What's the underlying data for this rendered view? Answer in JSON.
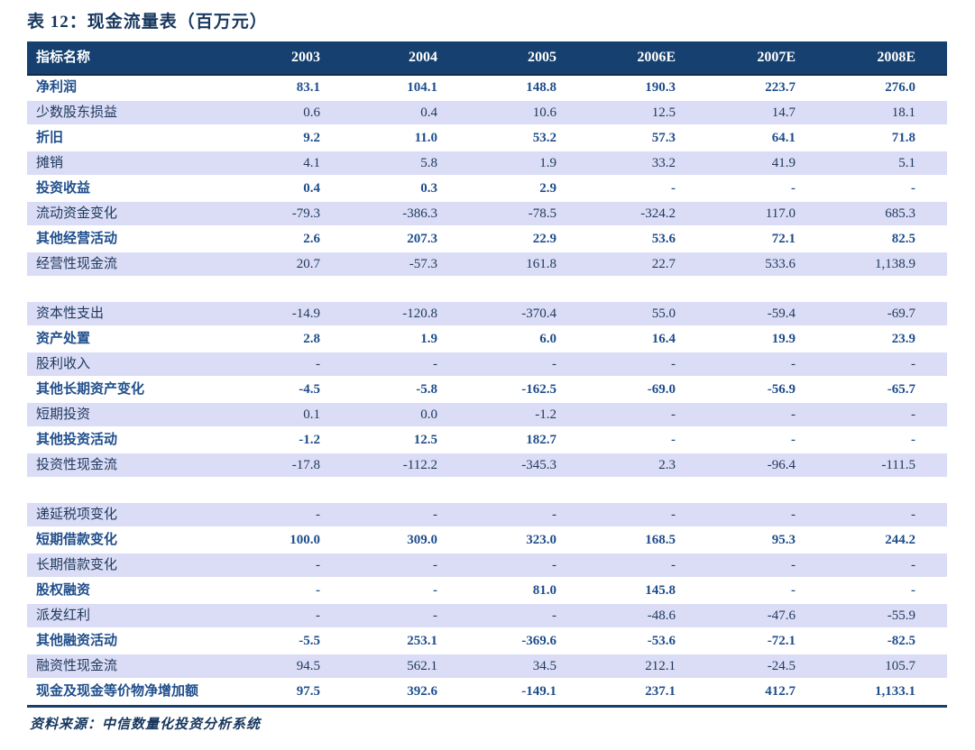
{
  "title": "表 12：现金流量表（百万元）",
  "source_note": "资料来源：中信数量化投资分析系统",
  "colors": {
    "header_bg": "#15406F",
    "header_text": "#FFFFFF",
    "alt_row_bg": "#DADDF5",
    "text_strong": "#1F4E8C",
    "text_regular": "#21395E",
    "title_color": "#17375E",
    "bottom_rule": "#17406B"
  },
  "table": {
    "columns": [
      "指标名称",
      "2003",
      "2004",
      "2005",
      "2006E",
      "2007E",
      "2008E"
    ],
    "sections": [
      {
        "rows": [
          {
            "label": "净利润",
            "values": [
              "83.1",
              "104.1",
              "148.8",
              "190.3",
              "223.7",
              "276.0"
            ]
          },
          {
            "label": "少数股东损益",
            "values": [
              "0.6",
              "0.4",
              "10.6",
              "12.5",
              "14.7",
              "18.1"
            ]
          },
          {
            "label": "折旧",
            "values": [
              "9.2",
              "11.0",
              "53.2",
              "57.3",
              "64.1",
              "71.8"
            ]
          },
          {
            "label": "摊销",
            "values": [
              "4.1",
              "5.8",
              "1.9",
              "33.2",
              "41.9",
              "5.1"
            ]
          },
          {
            "label": "投资收益",
            "values": [
              "0.4",
              "0.3",
              "2.9",
              "-",
              "-",
              "-"
            ]
          },
          {
            "label": "流动资金变化",
            "values": [
              "-79.3",
              "-386.3",
              "-78.5",
              "-324.2",
              "117.0",
              "685.3"
            ]
          },
          {
            "label": "其他经营活动",
            "values": [
              "2.6",
              "207.3",
              "22.9",
              "53.6",
              "72.1",
              "82.5"
            ]
          },
          {
            "label": "经营性现金流",
            "values": [
              "20.7",
              "-57.3",
              "161.8",
              "22.7",
              "533.6",
              "1,138.9"
            ]
          }
        ]
      },
      {
        "rows": [
          {
            "label": "资本性支出",
            "values": [
              "-14.9",
              "-120.8",
              "-370.4",
              "55.0",
              "-59.4",
              "-69.7"
            ]
          },
          {
            "label": "资产处置",
            "values": [
              "2.8",
              "1.9",
              "6.0",
              "16.4",
              "19.9",
              "23.9"
            ]
          },
          {
            "label": "股利收入",
            "values": [
              "-",
              "-",
              "-",
              "-",
              "-",
              "-"
            ]
          },
          {
            "label": "其他长期资产变化",
            "values": [
              "-4.5",
              "-5.8",
              "-162.5",
              "-69.0",
              "-56.9",
              "-65.7"
            ]
          },
          {
            "label": "短期投资",
            "values": [
              "0.1",
              "0.0",
              "-1.2",
              "-",
              "-",
              "-"
            ]
          },
          {
            "label": "其他投资活动",
            "values": [
              "-1.2",
              "12.5",
              "182.7",
              "-",
              "-",
              "-"
            ]
          },
          {
            "label": "投资性现金流",
            "values": [
              "-17.8",
              "-112.2",
              "-345.3",
              "2.3",
              "-96.4",
              "-111.5"
            ]
          }
        ]
      },
      {
        "rows": [
          {
            "label": "递延税项变化",
            "values": [
              "-",
              "-",
              "-",
              "-",
              "-",
              "-"
            ]
          },
          {
            "label": "短期借款变化",
            "values": [
              "100.0",
              "309.0",
              "323.0",
              "168.5",
              "95.3",
              "244.2"
            ]
          },
          {
            "label": "长期借款变化",
            "values": [
              "-",
              "-",
              "-",
              "-",
              "-",
              "-"
            ]
          },
          {
            "label": "股权融资",
            "values": [
              "-",
              "-",
              "81.0",
              "145.8",
              "-",
              "-"
            ]
          },
          {
            "label": "派发红利",
            "values": [
              "-",
              "-",
              "-",
              "-48.6",
              "-47.6",
              "-55.9"
            ]
          },
          {
            "label": "其他融资活动",
            "values": [
              "-5.5",
              "253.1",
              "-369.6",
              "-53.6",
              "-72.1",
              "-82.5"
            ]
          },
          {
            "label": "融资性现金流",
            "values": [
              "94.5",
              "562.1",
              "34.5",
              "212.1",
              "-24.5",
              "105.7"
            ]
          },
          {
            "label": "现金及现金等价物净增加额",
            "values": [
              "97.5",
              "392.6",
              "-149.1",
              "237.1",
              "412.7",
              "1,133.1"
            ]
          }
        ]
      }
    ]
  }
}
